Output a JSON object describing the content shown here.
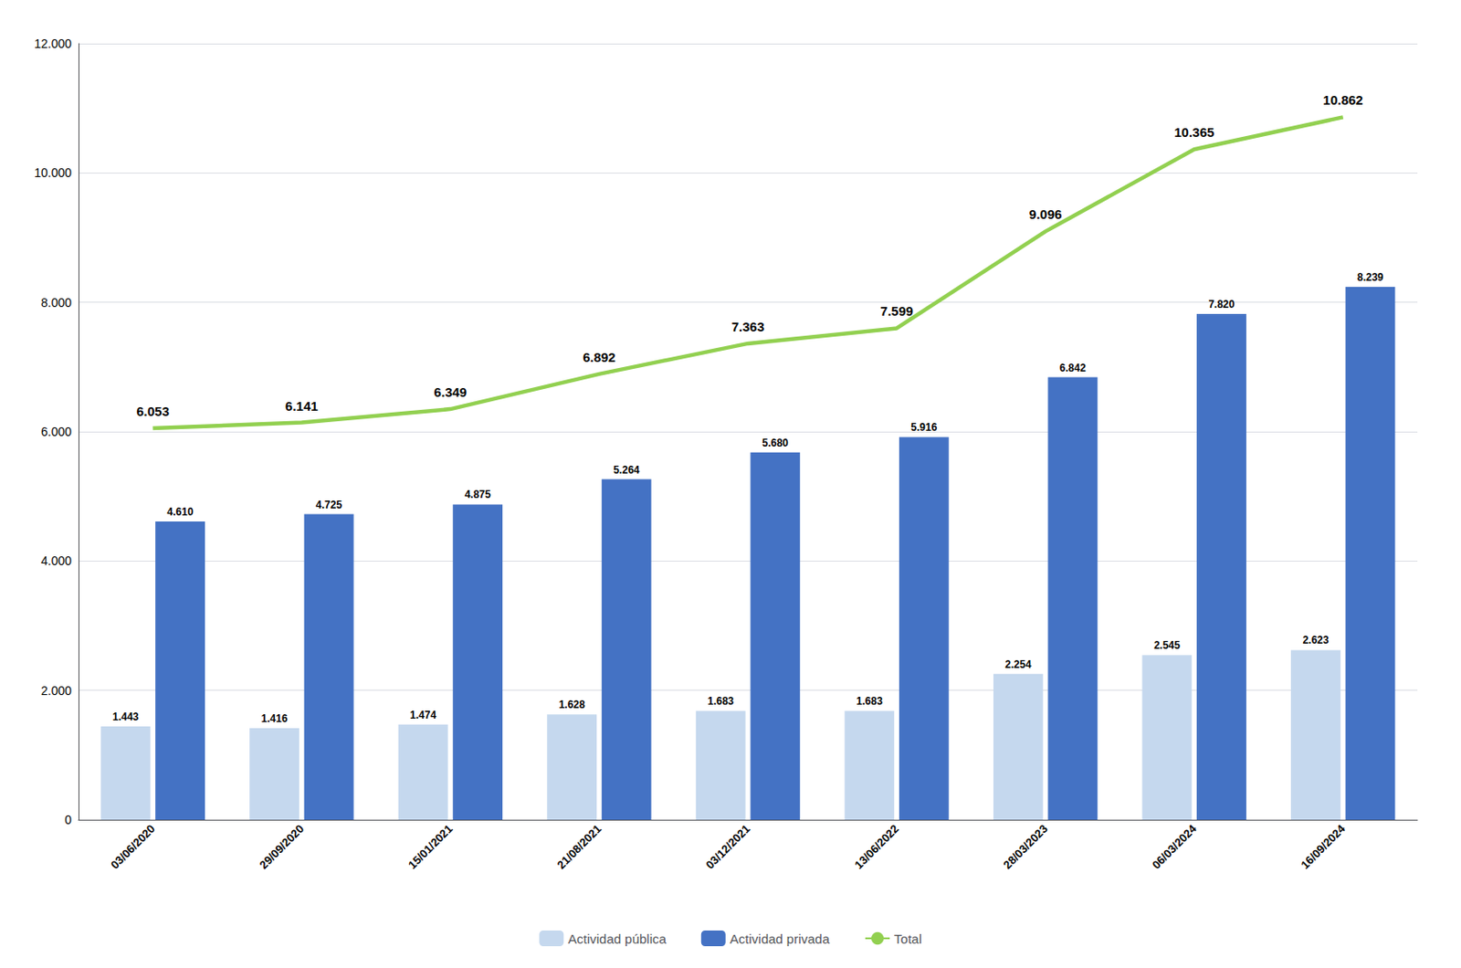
{
  "chart_data": {
    "type": "bar",
    "categories": [
      "03/06/2020",
      "29/09/2020",
      "15/01/2021",
      "21/08/2021",
      "03/12/2021",
      "13/06/2022",
      "28/03/2023",
      "06/03/2024",
      "16/09/2024"
    ],
    "series": [
      {
        "name": "Actividad pública",
        "type": "bar",
        "color": "#c5d8ee",
        "values": [
          1443,
          1416,
          1474,
          1628,
          1683,
          1683,
          2254,
          2545,
          2623
        ],
        "value_labels": [
          "1.443",
          "1.416",
          "1.474",
          "1.628",
          "1.683",
          "1.683",
          "2.254",
          "2.545",
          "2.623"
        ]
      },
      {
        "name": "Actividad privada",
        "type": "bar",
        "color": "#4472c4",
        "values": [
          4610,
          4725,
          4875,
          5264,
          5680,
          5916,
          6842,
          7820,
          8239
        ],
        "value_labels": [
          "4.610",
          "4.725",
          "4.875",
          "5.264",
          "5.680",
          "5.916",
          "6.842",
          "7.820",
          "8.239"
        ]
      },
      {
        "name": "Total",
        "type": "line",
        "color": "#92d050",
        "values": [
          6053,
          6141,
          6349,
          6892,
          7363,
          7599,
          9096,
          10365,
          10862
        ],
        "value_labels": [
          "6.053",
          "6.141",
          "6.349",
          "6.892",
          "7.363",
          "7.599",
          "9.096",
          "10.365",
          "10.862"
        ]
      }
    ],
    "ylim": [
      0,
      12000
    ],
    "yticks": [
      0,
      {
        "value": 2000,
        "label": "2.000"
      },
      {
        "value": 4000,
        "label": "4.000"
      },
      {
        "value": 6000,
        "label": "6.000"
      },
      {
        "value": 8000,
        "label": "8.000"
      },
      {
        "value": 10000,
        "label": "10.000"
      },
      {
        "value": 12000,
        "label": "12.000"
      }
    ],
    "grid": true,
    "legend": "bottom",
    "data_labels": true
  }
}
